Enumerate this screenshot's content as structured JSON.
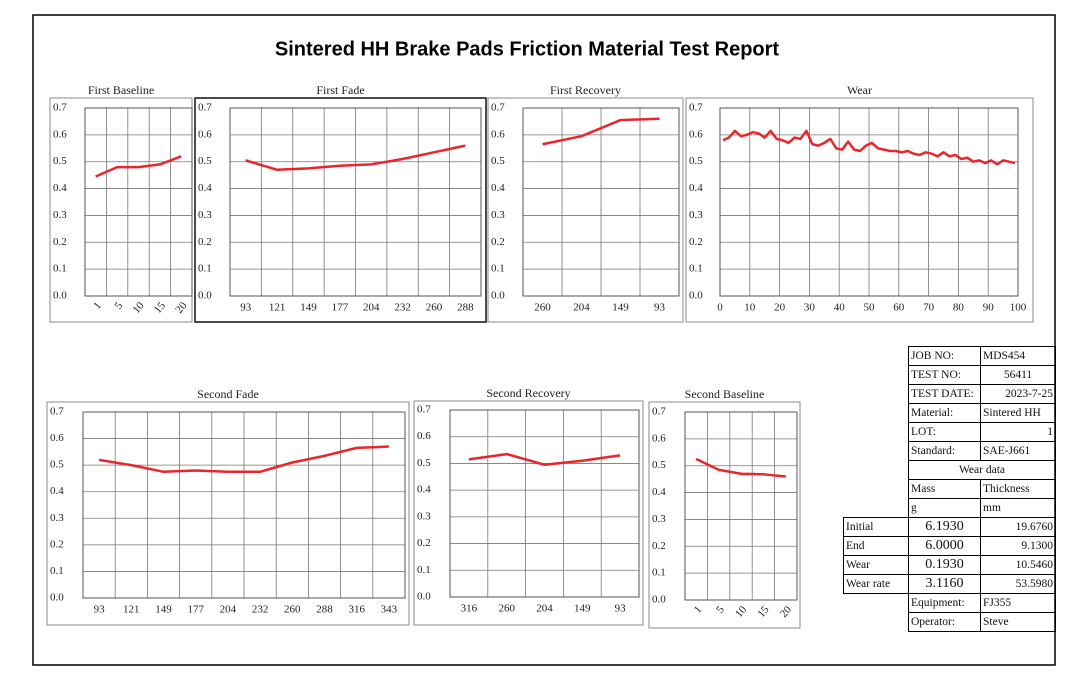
{
  "title": "Sintered HH Brake Pads Friction Material Test Report",
  "chart_data": [
    {
      "type": "line",
      "title": "First Baseline",
      "color": "#e8262b",
      "grid": true,
      "categories": [
        "1",
        "5",
        "10",
        "15",
        "20"
      ],
      "values": [
        0.445,
        0.48,
        0.48,
        0.49,
        0.52
      ],
      "ylim": [
        0,
        0.7
      ],
      "yticks": [
        {
          "value": 0,
          "label": "0.0"
        },
        0.1,
        0.2,
        0.3,
        0.4,
        0.5,
        0.6,
        0.7
      ]
    },
    {
      "type": "line",
      "title": "First Fade",
      "color": "#e8262b",
      "grid": true,
      "categories": [
        "93",
        "121",
        "149",
        "177",
        "204",
        "232",
        "260",
        "288"
      ],
      "values": [
        0.505,
        0.47,
        0.475,
        0.485,
        0.49,
        0.51,
        0.535,
        0.56
      ],
      "ylim": [
        0,
        0.7
      ],
      "yticks": [
        {
          "value": 0,
          "label": "0.0"
        },
        0.1,
        0.2,
        0.3,
        0.4,
        0.5,
        0.6,
        0.7
      ]
    },
    {
      "type": "line",
      "title": "First Recovery",
      "color": "#e8262b",
      "grid": true,
      "categories": [
        "260",
        "204",
        "149",
        "93"
      ],
      "values": [
        0.565,
        0.595,
        0.655,
        0.66
      ],
      "ylim": [
        0,
        0.7
      ],
      "yticks": [
        {
          "value": 0,
          "label": "0.0"
        },
        0.1,
        0.2,
        0.3,
        0.4,
        0.5,
        0.6,
        0.7
      ]
    },
    {
      "type": "line",
      "title": "Wear",
      "color": "#e8262b",
      "grid": true,
      "x": [
        1,
        3,
        5,
        7,
        9,
        11,
        13,
        15,
        17,
        19,
        21,
        23,
        25,
        27,
        29,
        31,
        33,
        35,
        37,
        39,
        41,
        43,
        45,
        47,
        49,
        51,
        53,
        55,
        57,
        59,
        61,
        63,
        65,
        67,
        69,
        71,
        73,
        75,
        77,
        79,
        81,
        83,
        85,
        87,
        89,
        91,
        93,
        95,
        97,
        99
      ],
      "values": [
        0.58,
        0.59,
        0.615,
        0.595,
        0.6,
        0.61,
        0.605,
        0.59,
        0.615,
        0.585,
        0.58,
        0.57,
        0.59,
        0.585,
        0.615,
        0.565,
        0.56,
        0.57,
        0.585,
        0.55,
        0.545,
        0.575,
        0.545,
        0.54,
        0.56,
        0.57,
        0.55,
        0.545,
        0.54,
        0.54,
        0.535,
        0.54,
        0.53,
        0.525,
        0.535,
        0.53,
        0.52,
        0.535,
        0.52,
        0.525,
        0.51,
        0.515,
        0.5,
        0.505,
        0.495,
        0.505,
        0.49,
        0.505,
        0.5,
        0.495
      ],
      "xlim": [
        0,
        100
      ],
      "xticks": [
        0,
        10,
        20,
        30,
        40,
        50,
        60,
        70,
        80,
        90,
        100
      ],
      "ylim": [
        0,
        0.7
      ],
      "yticks": [
        {
          "value": 0,
          "label": "0.0"
        },
        0.1,
        0.2,
        0.3,
        0.4,
        0.5,
        0.6,
        0.7
      ]
    },
    {
      "type": "line",
      "title": "Second Fade",
      "color": "#e8262b",
      "grid": true,
      "categories": [
        "93",
        "121",
        "149",
        "177",
        "204",
        "232",
        "260",
        "288",
        "316",
        "343"
      ],
      "values": [
        0.52,
        0.5,
        0.475,
        0.48,
        0.475,
        0.475,
        0.51,
        0.535,
        0.565,
        0.57
      ],
      "ylim": [
        0,
        0.7
      ],
      "yticks": [
        {
          "value": 0,
          "label": "0.0"
        },
        0.1,
        0.2,
        0.3,
        0.4,
        0.5,
        0.6,
        0.7
      ]
    },
    {
      "type": "line",
      "title": "Second Recovery",
      "color": "#e8262b",
      "grid": true,
      "categories": [
        "316",
        "260",
        "204",
        "149",
        "93"
      ],
      "values": [
        0.515,
        0.535,
        0.495,
        0.51,
        0.53
      ],
      "ylim": [
        0,
        0.7
      ],
      "yticks": [
        {
          "value": 0,
          "label": "0.0"
        },
        0.1,
        0.2,
        0.3,
        0.4,
        0.5,
        0.6,
        0.7
      ]
    },
    {
      "type": "line",
      "title": "Second Baseline",
      "color": "#e8262b",
      "grid": true,
      "categories": [
        "1",
        "5",
        "10",
        "15",
        "20"
      ],
      "values": [
        0.525,
        0.485,
        0.47,
        0.468,
        0.46
      ],
      "ylim": [
        0,
        0.7
      ],
      "yticks": [
        {
          "value": 0,
          "label": "0.0"
        },
        0.1,
        0.2,
        0.3,
        0.4,
        0.5,
        0.6,
        0.7
      ]
    }
  ],
  "table": {
    "info": [
      [
        "JOB NO:",
        "MDS454"
      ],
      [
        "TEST NO:",
        "56411"
      ],
      [
        "TEST DATE:",
        "2023-7-25"
      ],
      [
        "Material:",
        "Sintered HH"
      ],
      [
        "LOT:",
        "1"
      ],
      [
        "Standard:",
        "SAE-J661"
      ]
    ],
    "wear_title": "Wear data",
    "columns": [
      "Mass",
      "Thickness"
    ],
    "units": [
      "g",
      "mm"
    ],
    "rows": [
      [
        "Initial",
        "6.1930",
        "19.6760"
      ],
      [
        "End",
        "6.0000",
        "9.1300"
      ],
      [
        "Wear",
        "0.1930",
        "10.5460"
      ],
      [
        "Wear rate",
        "3.1160",
        "53.5980"
      ]
    ],
    "footer": [
      [
        "Equipment:",
        "FJ355"
      ],
      [
        "Operator:",
        "Steve"
      ]
    ]
  }
}
